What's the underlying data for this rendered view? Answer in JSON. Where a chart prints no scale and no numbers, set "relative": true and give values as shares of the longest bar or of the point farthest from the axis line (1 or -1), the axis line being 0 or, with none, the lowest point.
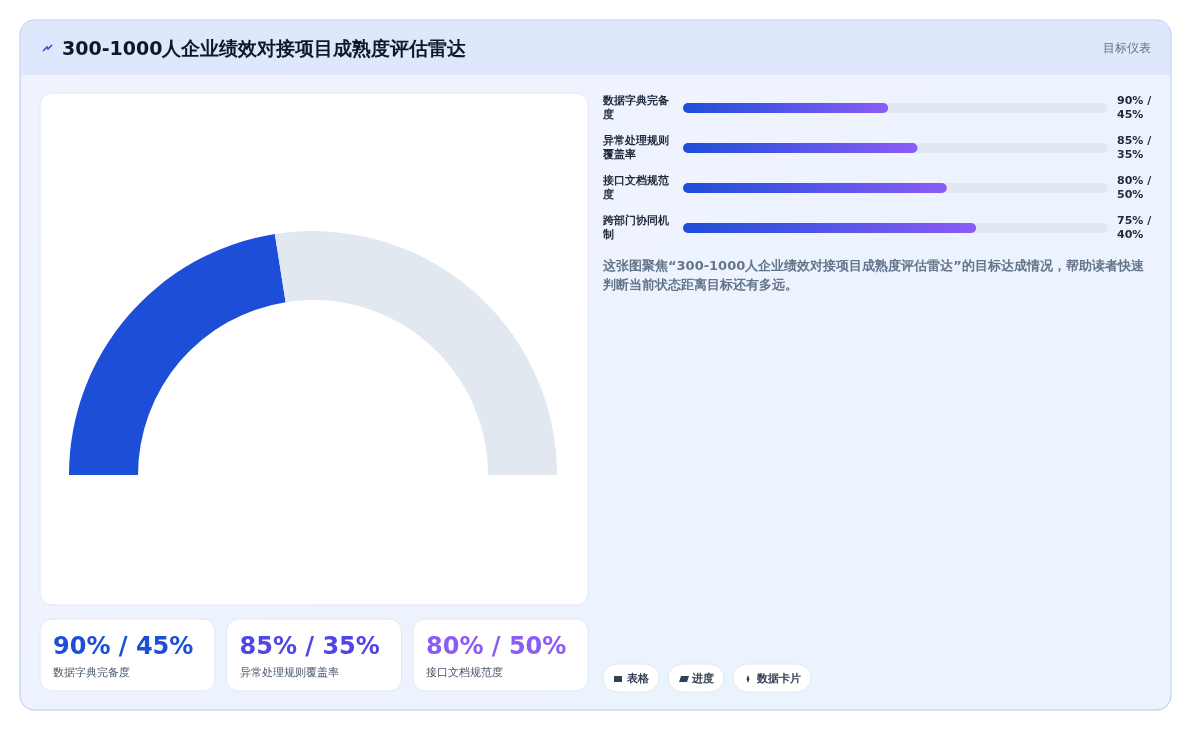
{
  "chart_data": [
    {
      "type": "donut",
      "title": "300-1000人企业绩效对接项目成熟度评估雷达",
      "categories": [
        null,
        null
      ],
      "values": [
        45,
        55
      ],
      "colors": [
        "#1d4ed8",
        "#e2e8f0"
      ]
    },
    {
      "type": "bar",
      "orientation": "horizontal",
      "relative": true,
      "categories": [
        "数据字典完备度",
        "异常处理规则覆盖率",
        "接口文档规范度",
        "跨部门协同机制"
      ],
      "series": [
        {
          "color": "#1d4ed8",
          "values": [
            0.7,
            0.8,
            0.9,
            1
          ]
        }
      ],
      "value_labels": [
        "90% / 45%",
        "85% / 35%",
        "80% / 50%",
        "75% / 40%"
      ],
      "annotations": [
        "目标仪表",
        "这张图聚焦“300-1000人企业绩效对接项目成熟度评估雷达”的目标达成情况，帮助读者快速判断当前状态距离目标还有多远。"
      ]
    },
    {
      "type": "other",
      "categories": [
        "数据字典完备度",
        "异常处理规则覆盖率",
        "接口文档规范度"
      ],
      "value_labels": [
        "90% / 45%",
        "85% / 35%",
        "80% / 50%"
      ],
      "annotations": [
        "表格",
        "进度",
        "数据卡片"
      ]
    }
  ]
}
